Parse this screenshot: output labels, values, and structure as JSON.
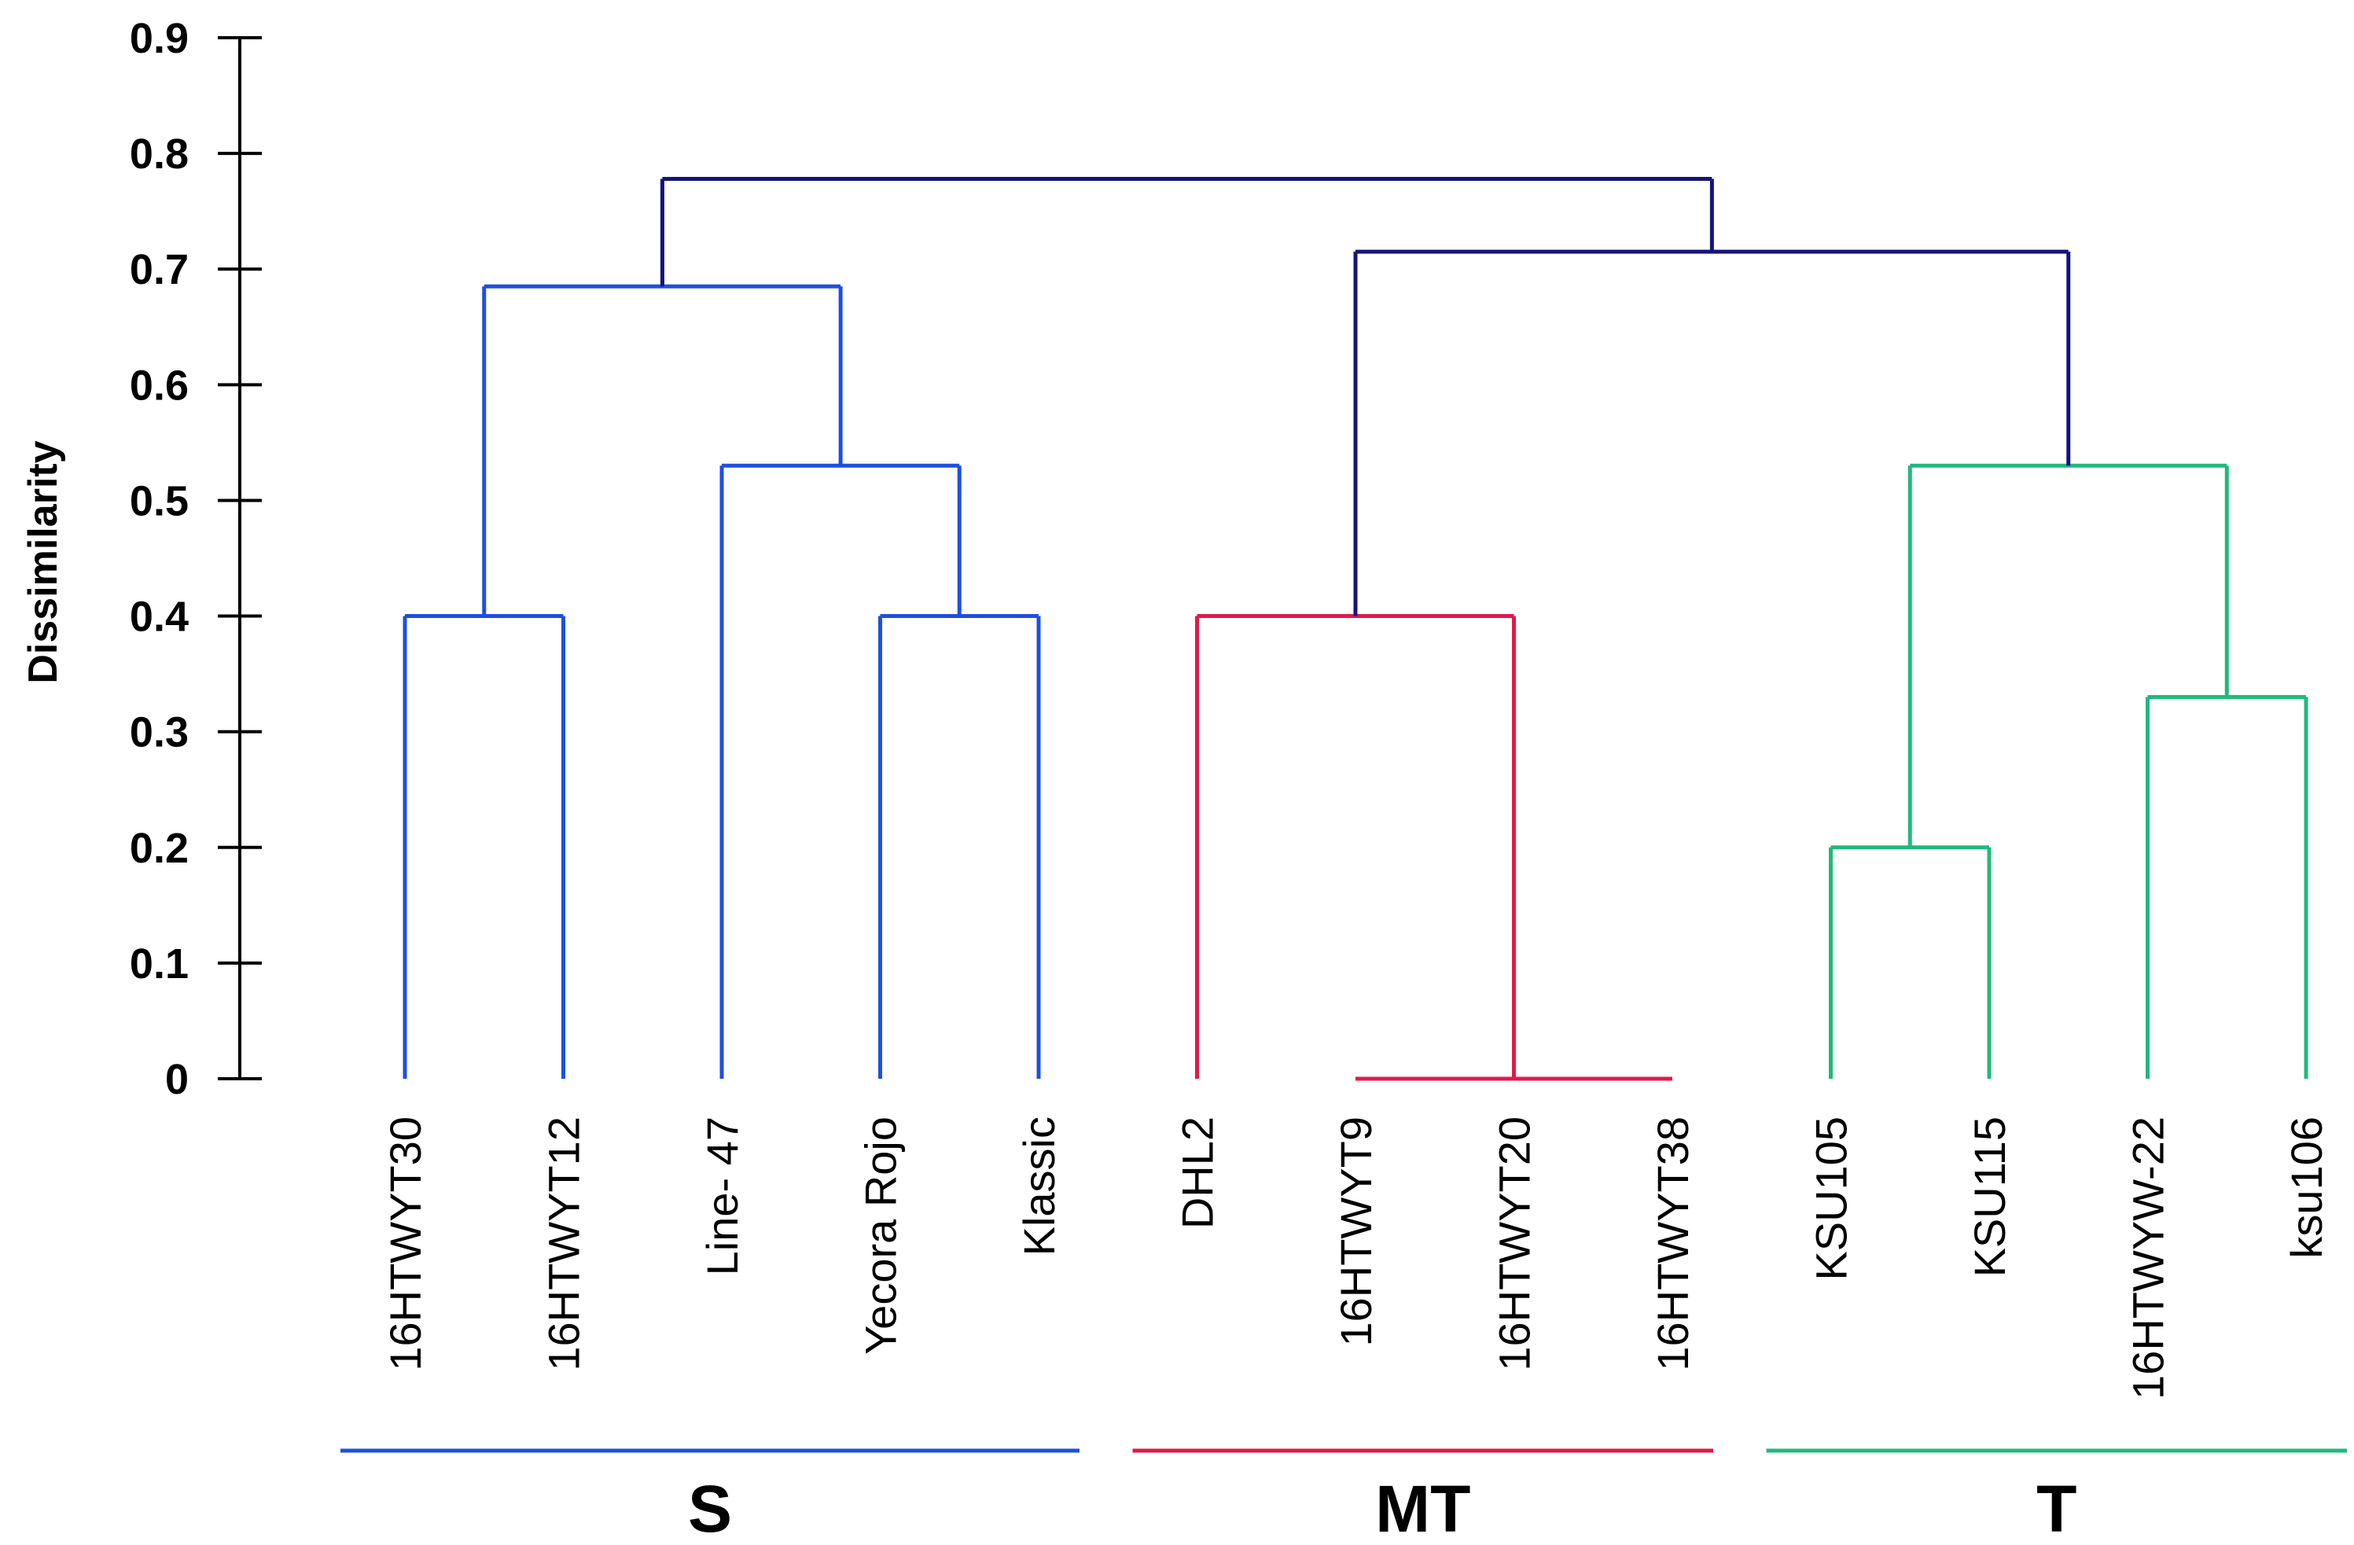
{
  "chart_data": {
    "type": "dendrogram",
    "ylabel": "Dissimilarity",
    "ylim": [
      0,
      0.9
    ],
    "yticks": [
      "0",
      "0.1",
      "0.2",
      "0.3",
      "0.4",
      "0.5",
      "0.6",
      "0.7",
      "0.8",
      "0.9"
    ],
    "leaves": [
      "16HTWYT30",
      "16HTWYT12",
      "Line- 47",
      "Yecora Rojo",
      "Klassic",
      "DHL2",
      "16HTWYT9",
      "16HTWYT20",
      "16HTWYT38",
      "KSU105",
      "KSU115",
      "16HTWYW-22",
      "ksu106"
    ],
    "merges": [
      {
        "id": "S1",
        "height": 0.4,
        "children": [
          "16HTWYT30",
          "16HTWYT12"
        ],
        "color": "#1f4fe0"
      },
      {
        "id": "S2",
        "height": 0.4,
        "children": [
          "Yecora Rojo",
          "Klassic"
        ],
        "color": "#1f4fe0"
      },
      {
        "id": "S3",
        "height": 0.53,
        "children": [
          "Line- 47",
          "S2"
        ],
        "color": "#1f4fe0"
      },
      {
        "id": "S",
        "height": 0.685,
        "children": [
          "S1",
          "S3"
        ],
        "color": "#1f4fe0"
      },
      {
        "id": "M1",
        "height": 0.0,
        "children": [
          "16HTWYT9",
          "16HTWYT20",
          "16HTWYT38"
        ],
        "color": "#e0194a"
      },
      {
        "id": "MT",
        "height": 0.4,
        "children": [
          "DHL2",
          "M1"
        ],
        "color": "#e0194a"
      },
      {
        "id": "T1",
        "height": 0.2,
        "children": [
          "KSU105",
          "KSU115"
        ],
        "color": "#1fba7c"
      },
      {
        "id": "T2",
        "height": 0.33,
        "children": [
          "16HTWYW-22",
          "ksu106"
        ],
        "color": "#1fba7c"
      },
      {
        "id": "T",
        "height": 0.53,
        "children": [
          "T1",
          "T2"
        ],
        "color": "#1fba7c"
      },
      {
        "id": "MTT",
        "height": 0.715,
        "children": [
          "MT",
          "T"
        ],
        "color": "#14147a"
      },
      {
        "id": "ROOT",
        "height": 0.778,
        "children": [
          "S",
          "MTT"
        ],
        "color": "#14147a"
      }
    ],
    "groups": [
      {
        "name": "S",
        "members": [
          "16HTWYT30",
          "16HTWYT12",
          "Line- 47",
          "Yecora Rojo",
          "Klassic"
        ],
        "color": "#1f4fe0"
      },
      {
        "name": "MT",
        "members": [
          "DHL2",
          "16HTWYT9",
          "16HTWYT20",
          "16HTWYT38"
        ],
        "color": "#e0194a"
      },
      {
        "name": "T",
        "members": [
          "KSU105",
          "KSU115",
          "16HTWYW-22",
          "ksu106"
        ],
        "color": "#1fba7c"
      }
    ]
  }
}
